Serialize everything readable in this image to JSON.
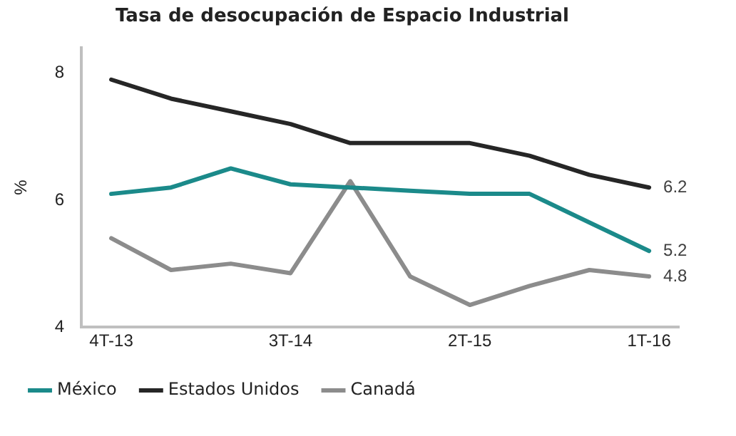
{
  "chart_data": {
    "type": "line",
    "title": "Tasa de desocupación de Espacio Industrial",
    "ylabel": "%",
    "categories": [
      "4T-13",
      null,
      null,
      "3T-14",
      null,
      null,
      "2T-15",
      null,
      null,
      "1T-16"
    ],
    "series": [
      {
        "name": "México",
        "color": "#1b8a8a",
        "values": [
          6.1,
          6.2,
          6.5,
          6.25,
          6.2,
          6.15,
          6.1,
          6.1,
          5.65,
          5.2
        ],
        "value_labels": [
          null,
          null,
          null,
          null,
          null,
          null,
          null,
          null,
          null,
          "5.2"
        ]
      },
      {
        "name": "Estados Unidos",
        "color": "#262626",
        "values": [
          7.9,
          7.6,
          7.4,
          7.2,
          6.9,
          6.9,
          6.9,
          6.7,
          6.4,
          6.2
        ],
        "value_labels": [
          null,
          null,
          null,
          null,
          null,
          null,
          null,
          null,
          null,
          "6.2"
        ]
      },
      {
        "name": "Canadá",
        "color": "#8c8c8c",
        "values": [
          5.4,
          4.9,
          5.0,
          4.85,
          6.3,
          4.8,
          4.35,
          4.65,
          4.9,
          4.8
        ],
        "value_labels": [
          null,
          null,
          null,
          null,
          null,
          null,
          null,
          null,
          null,
          "4.8"
        ]
      }
    ],
    "ylim": [
      4,
      8.4
    ],
    "yticks": [
      4,
      6,
      8
    ],
    "grid": false,
    "legend": "bottom",
    "marker": "none",
    "line_style": "solid"
  }
}
